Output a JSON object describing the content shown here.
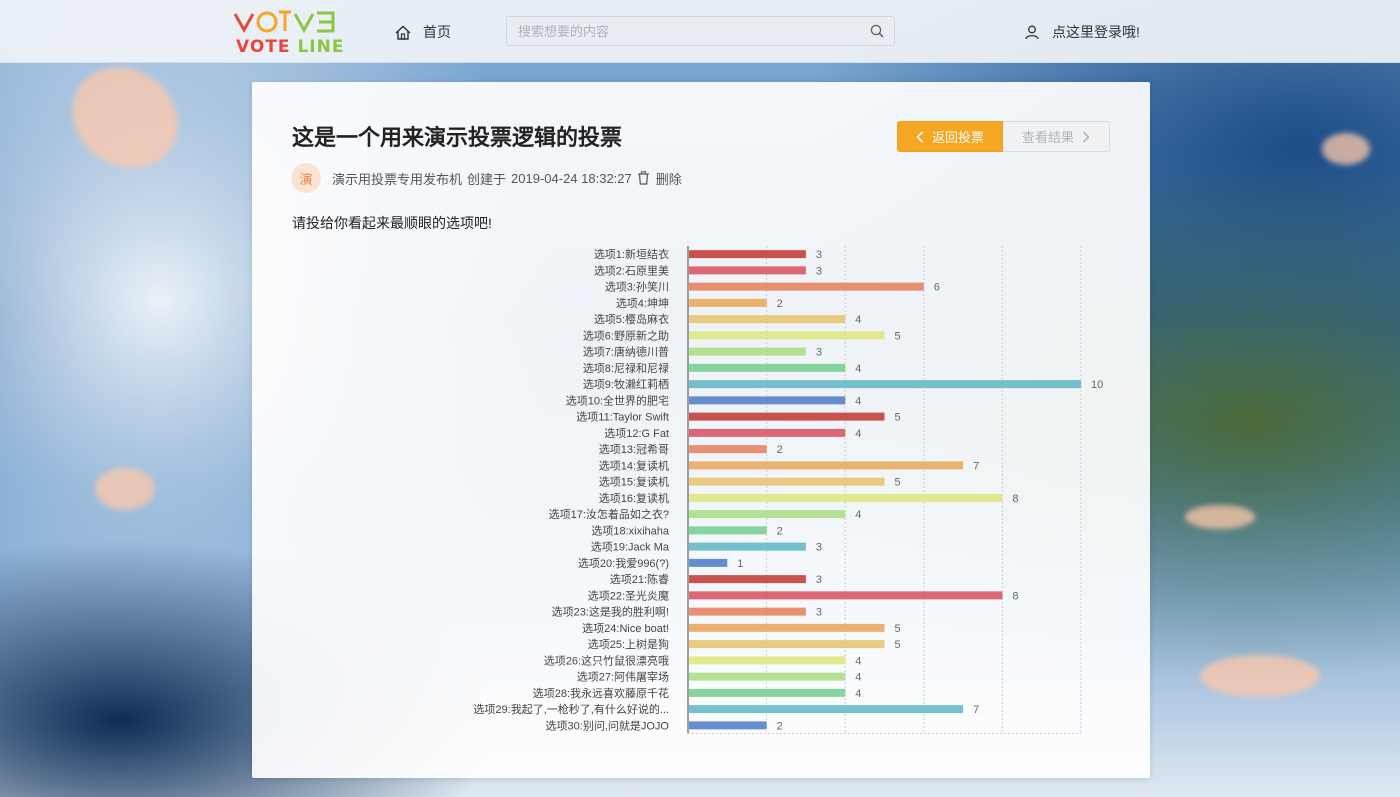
{
  "header": {
    "logo_top": "VOTE",
    "logo_bottom_vote": "VOTE",
    "logo_bottom_line": "LINE",
    "home_label": "首页",
    "search_placeholder": "搜索想要的内容",
    "login_label": "点这里登录哦!"
  },
  "vote": {
    "title": "这是一个用来演示投票逻辑的投票",
    "back_label": "返回投票",
    "result_label": "查看结果",
    "avatar_char": "演",
    "publisher": "演示用投票专用发布机",
    "created_label": "创建于",
    "created_at": "2019-04-24 18:32:27",
    "delete_label": "删除",
    "description": "请投给你看起来最顺眼的选项吧!"
  },
  "colors": {
    "accent": "#f5a623",
    "logo_red": "#e8453c",
    "logo_yellow": "#f5a623",
    "logo_green": "#8cc63f"
  },
  "chart_data": {
    "type": "bar",
    "orientation": "horizontal",
    "xlim": [
      0,
      10
    ],
    "grid": true,
    "categories": [
      "选项1:新垣结衣",
      "选项2:石原里美",
      "选项3:孙笑川",
      "选项4:坤坤",
      "选项5:樱岛麻衣",
      "选项6:野原新之助",
      "选项7:唐纳德川普",
      "选项8:尼禄和尼禄",
      "选项9:牧濑红莉栖",
      "选项10:全世界的肥宅",
      "选项11:Taylor Swift",
      "选项12:G Fat",
      "选项13:冠希哥",
      "选项14:复读机",
      "选项15:复读机",
      "选项16:复读机",
      "选项17:汝怎着品如之衣?",
      "选项18:xixihaha",
      "选项19:Jack Ma",
      "选项20:我爱996(?)",
      "选项21:陈睿",
      "选项22:圣光炎魔",
      "选项23:这是我的胜利啊!",
      "选项24:Nice boat!",
      "选项25:上树是狗",
      "选项26:这只竹鼠很漂亮哦",
      "选项27:阿伟屠宰场",
      "选项28:我永远喜欢藤原千花",
      "选项29:我起了,一枪秒了,有什么好说的...",
      "选项30:别问,问就是JOJO"
    ],
    "values": [
      3,
      3,
      6,
      2,
      4,
      5,
      3,
      4,
      10,
      4,
      5,
      4,
      2,
      7,
      5,
      8,
      4,
      2,
      3,
      1,
      3,
      8,
      3,
      5,
      5,
      4,
      4,
      4,
      7,
      2
    ],
    "bar_colors": [
      "#c23531",
      "#d94e5d",
      "#e67c5b",
      "#eaa557",
      "#e6c26a",
      "#dde67a",
      "#a9dc80",
      "#73cc8e",
      "#5fb5c4",
      "#4c7ac6"
    ]
  }
}
